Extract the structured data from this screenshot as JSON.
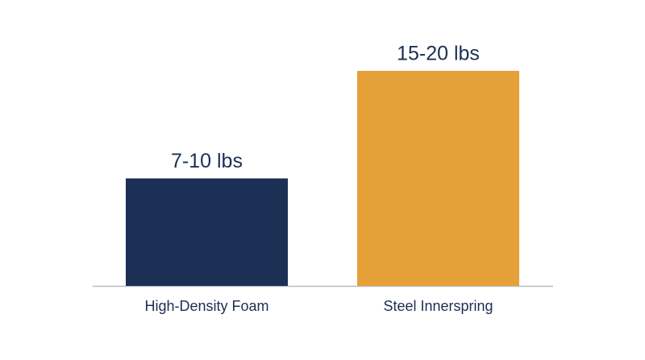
{
  "chart_data": {
    "type": "bar",
    "categories": [
      "High-Density Foam",
      "Steel Innerspring"
    ],
    "values": [
      10,
      20
    ],
    "value_labels": [
      "7-10 lbs",
      "15-20 lbs"
    ],
    "colors": [
      "#1c2f54",
      "#e6a038"
    ]
  }
}
